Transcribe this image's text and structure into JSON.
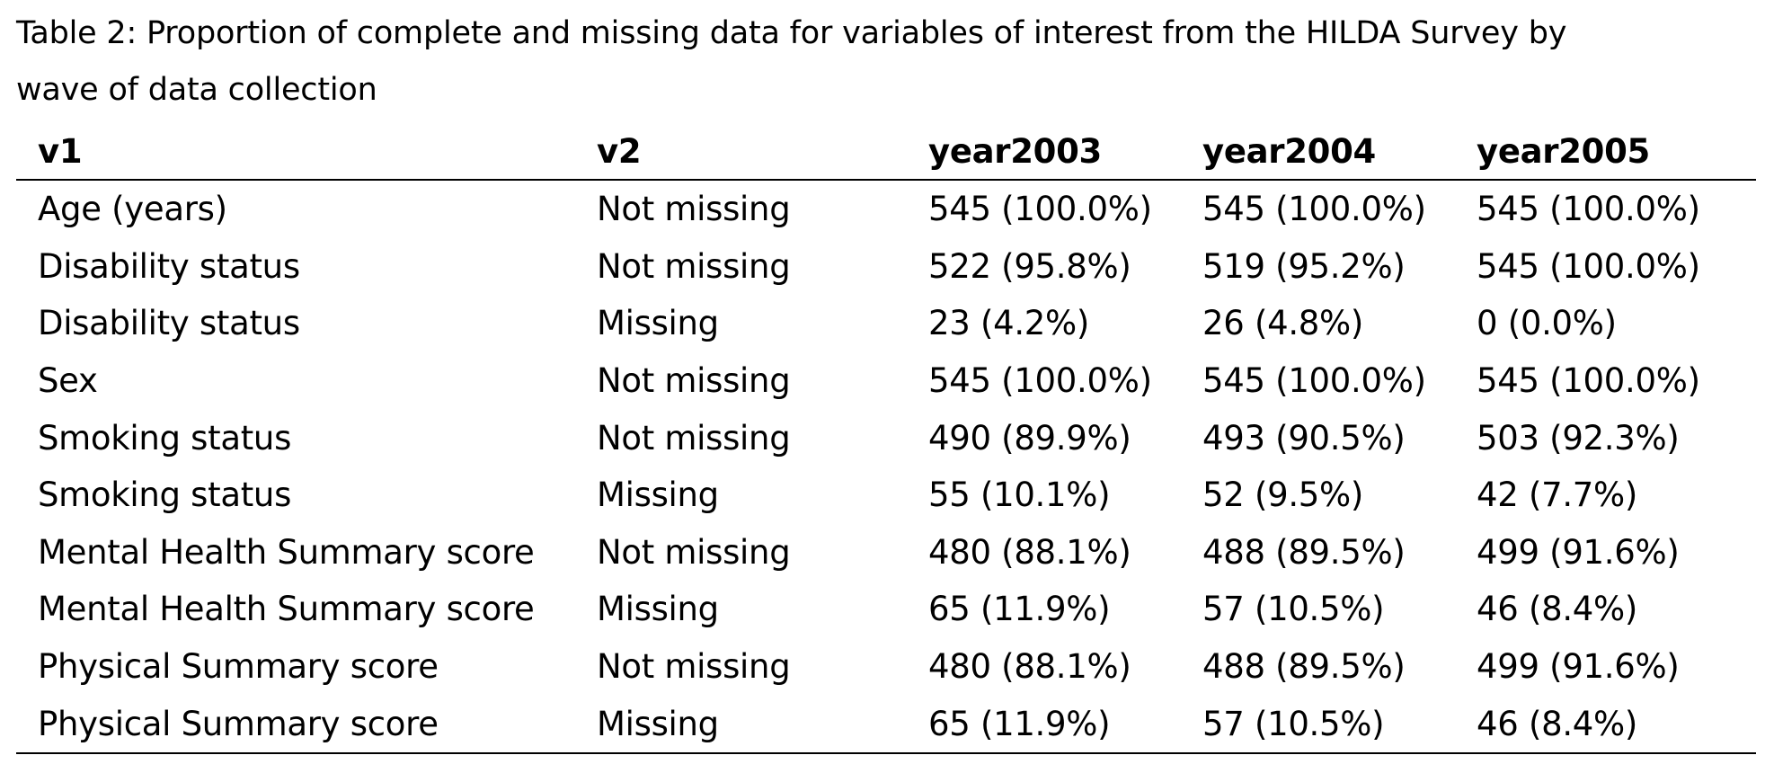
{
  "caption": {
    "line1": "Table 2: Proportion of complete and missing data for variables of interest from the HILDA Survey by",
    "line2": "wave of data collection"
  },
  "table": {
    "headers": [
      "v1",
      "v2",
      "year2003",
      "year2004",
      "year2005"
    ],
    "rows": [
      [
        "Age (years)",
        "Not missing",
        "545 (100.0%)",
        "545 (100.0%)",
        "545 (100.0%)"
      ],
      [
        "Disability status",
        "Not missing",
        "522 (95.8%)",
        "519 (95.2%)",
        "545 (100.0%)"
      ],
      [
        "Disability status",
        "Missing",
        "23 (4.2%)",
        "26 (4.8%)",
        "0 (0.0%)"
      ],
      [
        "Sex",
        "Not missing",
        "545 (100.0%)",
        "545 (100.0%)",
        "545 (100.0%)"
      ],
      [
        "Smoking status",
        "Not missing",
        "490 (89.9%)",
        "493 (90.5%)",
        "503 (92.3%)"
      ],
      [
        "Smoking status",
        "Missing",
        "55 (10.1%)",
        "52 (9.5%)",
        "42 (7.7%)"
      ],
      [
        "Mental Health Summary score",
        "Not missing",
        "480 (88.1%)",
        "488 (89.5%)",
        "499 (91.6%)"
      ],
      [
        "Mental Health Summary score",
        "Missing",
        "65 (11.9%)",
        "57 (10.5%)",
        "46 (8.4%)"
      ],
      [
        "Physical Summary score",
        "Not missing",
        "480 (88.1%)",
        "488 (89.5%)",
        "499 (91.6%)"
      ],
      [
        "Physical Summary score",
        "Missing",
        "65 (11.9%)",
        "57 (10.5%)",
        "46 (8.4%)"
      ]
    ]
  }
}
